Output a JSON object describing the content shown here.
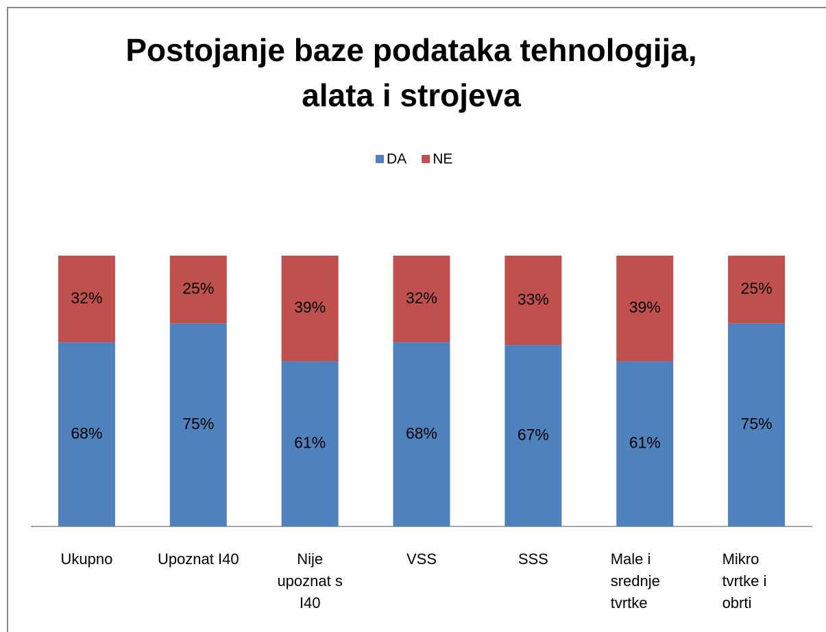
{
  "chart_data": {
    "type": "stacked_bar_100",
    "title": "Postojanje baze podataka tehnologija, alata i strojeva",
    "categories": [
      "Ukupno",
      "Upoznat I40",
      "Nije upoznat s I40",
      "VSS",
      "SSS",
      "Male i srednje tvrtke",
      "Mikro tvrtke i obrti"
    ],
    "series": [
      {
        "name": "DA",
        "color": "#4f81bd",
        "values": [
          68,
          75,
          61,
          68,
          67,
          61,
          75
        ],
        "value_labels": [
          "68%",
          "75%",
          "61%",
          "68%",
          "67%",
          "61%",
          "75%"
        ]
      },
      {
        "name": "NE",
        "color": "#c0504d",
        "values": [
          32,
          25,
          39,
          32,
          33,
          39,
          25
        ],
        "value_labels": [
          "32%",
          "25%",
          "39%",
          "32%",
          "33%",
          "39%",
          "25%"
        ]
      }
    ],
    "legend": "top"
  }
}
